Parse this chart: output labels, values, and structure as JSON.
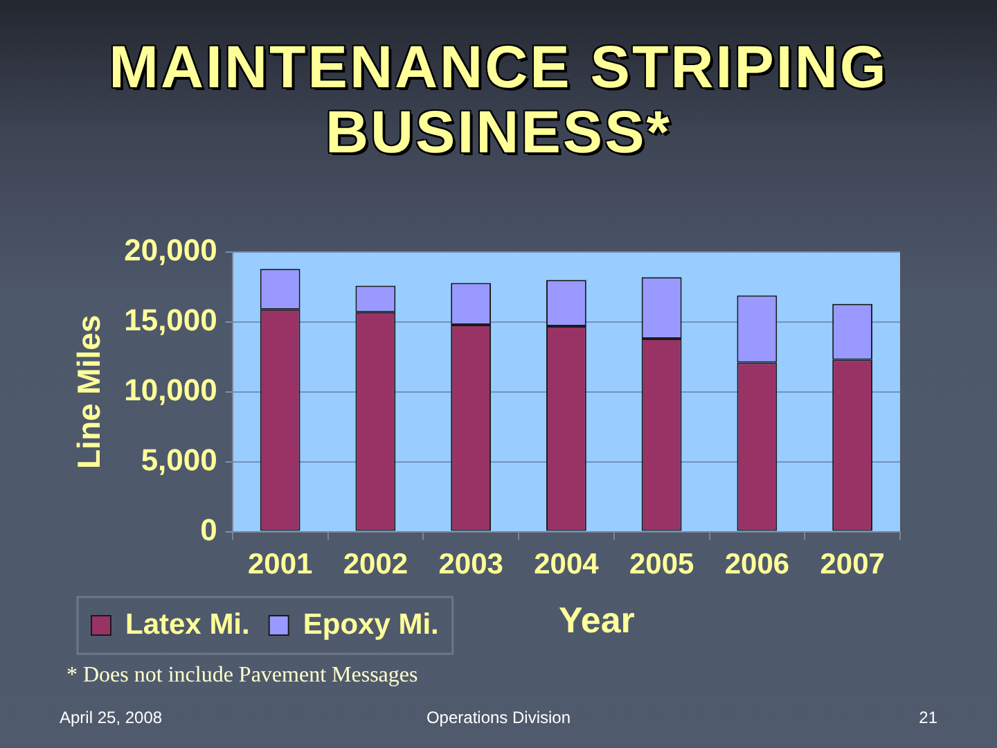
{
  "chart_data": {
    "type": "bar",
    "title": "MAINTENANCE STRIPING BUSINESS*",
    "xlabel": "Year",
    "ylabel": "Line Miles",
    "categories": [
      "2001",
      "2002",
      "2003",
      "2004",
      "2005",
      "2006",
      "2007"
    ],
    "series": [
      {
        "name": "Latex Mi.",
        "color": "#993366",
        "values": [
          15900,
          15700,
          14800,
          14700,
          13800,
          12100,
          12300
        ]
      },
      {
        "name": "Epoxy Mi.",
        "color": "#9999ff",
        "values": [
          2900,
          1900,
          3000,
          3300,
          4400,
          4800,
          4000
        ]
      }
    ],
    "stacked": true,
    "ylim": [
      0,
      20000
    ],
    "yticks": [
      0,
      {
        "value": 5000,
        "label": "5,000"
      },
      {
        "value": 10000,
        "label": "10,000"
      },
      {
        "value": 15000,
        "label": "15,000"
      },
      {
        "value": 20000,
        "label": "20,000"
      }
    ],
    "grid": "y",
    "legend": "bottom left",
    "annotations": [
      "* Does not include Pavement Messages",
      "April 25, 2008",
      "Operations Division",
      "21"
    ]
  }
}
